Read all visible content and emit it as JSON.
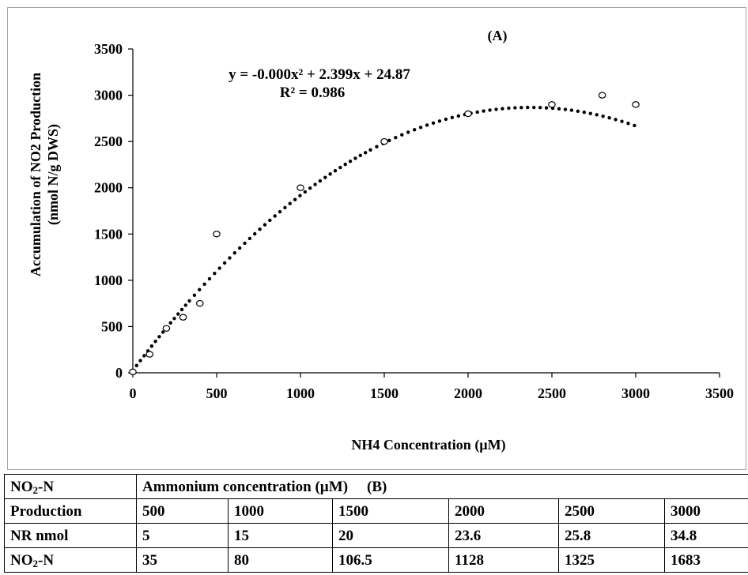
{
  "chart_data": {
    "type": "scatter",
    "title": "(A)",
    "xlabel": "NH4 Concentration (µM)",
    "ylabel_line1": "Accumulation of NO2 Production",
    "ylabel_line2": "(nmol N/g DWS)",
    "xlim": [
      0,
      3500
    ],
    "ylim": [
      0,
      3500
    ],
    "xticks": [
      0,
      500,
      1000,
      1500,
      2000,
      2500,
      3000,
      3500
    ],
    "yticks": [
      0,
      500,
      1000,
      1500,
      2000,
      2500,
      3000,
      3500
    ],
    "grid": false,
    "points": [
      {
        "x": 0,
        "y": 10
      },
      {
        "x": 100,
        "y": 200
      },
      {
        "x": 200,
        "y": 480
      },
      {
        "x": 300,
        "y": 600
      },
      {
        "x": 400,
        "y": 750
      },
      {
        "x": 500,
        "y": 1500
      },
      {
        "x": 1000,
        "y": 2000
      },
      {
        "x": 1500,
        "y": 2500
      },
      {
        "x": 2000,
        "y": 2800
      },
      {
        "x": 2500,
        "y": 2900
      },
      {
        "x": 2800,
        "y": 3000
      },
      {
        "x": 3000,
        "y": 2900
      }
    ],
    "trendline": {
      "type": "polynomial",
      "equation": "y = -0.000x² + 2.399x + 24.87",
      "r_squared": "R² = 0.986",
      "x_range": [
        0,
        3000
      ],
      "coefficients": {
        "a": -0.000506,
        "b": 2.399,
        "c": 24.87
      }
    }
  },
  "table": {
    "label_header_1": "NO",
    "label_header_1_sub": "2",
    "label_header_1_suffix": "-N",
    "label_header_2": "Production",
    "group_header": "Ammonium concentration (µM)",
    "group_header_tag": "(B)",
    "concentrations": [
      "500",
      "1000",
      "1500",
      "2000",
      "2500",
      "3000"
    ],
    "rows": [
      {
        "label": "NR nmol",
        "values": [
          "5",
          "15",
          "20",
          "23.6",
          "25.8",
          "34.8"
        ]
      },
      {
        "label": "NO",
        "label_sub": "2",
        "label_suffix": "-N",
        "values": [
          "35",
          "80",
          "106.5",
          "1128",
          "1325",
          "1683"
        ]
      }
    ]
  }
}
